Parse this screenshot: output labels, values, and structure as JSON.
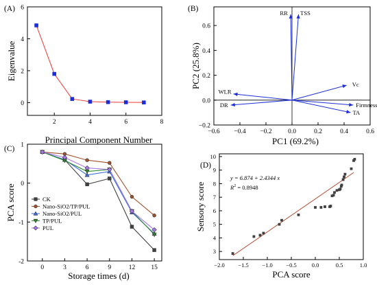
{
  "chart_data": [
    {
      "panel": "(A)",
      "type": "line",
      "xlabel": "Principal Component Number",
      "ylabel": "Eigenvalue",
      "xlim": [
        0.5,
        8
      ],
      "ylim": [
        -0.8,
        6
      ],
      "xticks": [
        2,
        4,
        6,
        8
      ],
      "yticks": [
        0,
        2,
        4,
        6
      ],
      "colors": {
        "line": "#ee3a3a",
        "marker": "#1b2ed8"
      },
      "series": [
        {
          "x": [
            1,
            2,
            3,
            4,
            5,
            6,
            7
          ],
          "values": [
            4.84,
            1.8,
            0.23,
            0.06,
            0.03,
            0.02,
            0.01
          ]
        }
      ]
    },
    {
      "panel": "(B)",
      "type": "biplot",
      "xlabel": "PC1 (69.2%)",
      "ylabel": "PC2 (25.8%)",
      "xlim": [
        -0.6,
        0.6
      ],
      "ylim": [
        -0.2,
        0.75
      ],
      "xticks": [
        -0.6,
        -0.4,
        -0.2,
        0.0,
        0.2,
        0.4,
        0.6
      ],
      "xtick_labels": [
        "−0.6",
        "−0.4",
        "−0.2",
        "0.0",
        "0.2",
        "0.4",
        "0.6"
      ],
      "yticks": [
        -0.2,
        0.0,
        0.2,
        0.4,
        0.6
      ],
      "ytick_labels": [
        "−0.2",
        "0.0",
        "0.2",
        "0.4",
        "0.6"
      ],
      "colors": {
        "vector": "#1b2ed8"
      },
      "vectors": [
        {
          "name": "RR",
          "x": -0.01,
          "y": 0.69
        },
        {
          "name": "TSS",
          "x": 0.05,
          "y": 0.69
        },
        {
          "name": "Vc",
          "x": 0.42,
          "y": 0.12
        },
        {
          "name": "WLR",
          "x": -0.45,
          "y": 0.05
        },
        {
          "name": "DR",
          "x": -0.47,
          "y": -0.04
        },
        {
          "name": "Firmness",
          "x": 0.47,
          "y": -0.04
        },
        {
          "name": "TA",
          "x": 0.45,
          "y": -0.1
        }
      ]
    },
    {
      "panel": "(C)",
      "type": "line",
      "xlabel": "Storage times (d)",
      "ylabel": "PCA score",
      "xlim": [
        -2,
        16
      ],
      "ylim": [
        -2,
        1
      ],
      "xticks": [
        0,
        3,
        6,
        9,
        12,
        15
      ],
      "yticks": [
        -2,
        -1,
        0,
        1
      ],
      "legend_position": "lower-left",
      "categories": [
        0,
        3,
        6,
        9,
        12,
        15
      ],
      "series": [
        {
          "name": "CK",
          "color": "#404040",
          "marker": "square",
          "values": [
            0.8,
            0.6,
            -0.03,
            0.12,
            -1.12,
            -1.72
          ]
        },
        {
          "name": "Nano-SiO2/TP/PUL",
          "color": "#a0522d",
          "marker": "circle",
          "values": [
            0.8,
            0.75,
            0.59,
            0.52,
            -0.35,
            -0.83
          ]
        },
        {
          "name": "Nano-SiO2/PUL",
          "color": "#3c6ee0",
          "marker": "triangle-up",
          "values": [
            0.8,
            0.6,
            0.21,
            0.3,
            -0.75,
            -1.3
          ]
        },
        {
          "name": "TP/PUL",
          "color": "#2d8a2d",
          "marker": "triangle-down",
          "values": [
            0.8,
            0.58,
            0.3,
            0.35,
            -0.72,
            -1.32
          ]
        },
        {
          "name": "PUL",
          "color": "#a878e8",
          "marker": "diamond",
          "values": [
            0.8,
            0.66,
            0.39,
            0.35,
            -0.72,
            -1.2
          ]
        }
      ]
    },
    {
      "panel": "(D)",
      "type": "scatter",
      "xlabel": "PCA score",
      "ylabel": "Sensory score",
      "xlim": [
        -2.0,
        1.0
      ],
      "ylim": [
        2.4,
        10.2
      ],
      "xticks": [
        -2.0,
        -1.5,
        -1.0,
        -0.5,
        0.0,
        0.5,
        1.0
      ],
      "xtick_labels": [
        "−2.0",
        "−1.5",
        "−1.0",
        "−0.5",
        "0.0",
        "0.5",
        "1.0"
      ],
      "yticks": [
        3,
        4,
        5,
        6,
        7,
        8,
        9,
        10
      ],
      "equation": "y = 6.874 + 2.4344 x",
      "r2_label": "R",
      "r2_sup": "2",
      "r2_value": " = 0.8948",
      "fit": {
        "intercept": 6.874,
        "slope": 2.4344,
        "x_range": [
          -1.72,
          0.8
        ],
        "color": "#b5523b"
      },
      "points": {
        "x": [
          -1.72,
          -1.28,
          -1.15,
          -1.08,
          -0.75,
          -0.7,
          -0.35,
          0.0,
          0.12,
          0.2,
          0.3,
          0.32,
          0.35,
          0.38,
          0.4,
          0.45,
          0.5,
          0.52,
          0.54,
          0.55,
          0.58,
          0.6,
          0.62,
          0.75,
          0.8,
          0.82
        ],
        "y": [
          2.85,
          4.1,
          4.2,
          4.35,
          5.0,
          5.3,
          5.7,
          6.25,
          6.25,
          6.3,
          6.3,
          6.35,
          7.1,
          7.15,
          7.35,
          7.5,
          7.55,
          7.6,
          7.8,
          7.9,
          8.3,
          8.5,
          8.7,
          9.1,
          9.7,
          9.8
        ],
        "color": "#404040"
      }
    }
  ]
}
